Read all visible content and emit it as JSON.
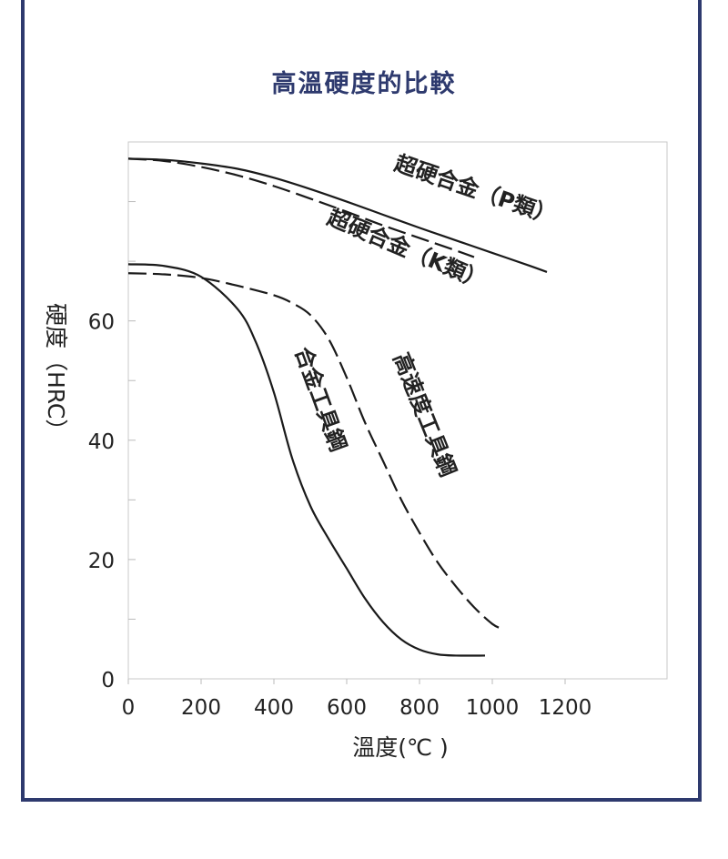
{
  "chart_data": {
    "type": "line",
    "title": "高溫硬度的比較",
    "xlabel": "溫度(℃ )",
    "ylabel": "硬度（HRC）",
    "xlim": [
      0,
      1480
    ],
    "ylim": [
      0,
      90
    ],
    "xticks": [
      "0",
      "200",
      "400",
      "600",
      "800",
      "1000",
      "1200"
    ],
    "xtick_values": [
      0,
      200,
      400,
      600,
      800,
      1000,
      1200
    ],
    "yticks": [
      "0",
      "20",
      "40",
      "60"
    ],
    "ytick_values": [
      0,
      20,
      40,
      60
    ],
    "grid": false,
    "series": [
      {
        "name": "超硬合金（P類）",
        "style": "solid",
        "x": [
          0,
          100,
          200,
          300,
          400,
          500,
          600,
          700,
          800,
          900,
          1000,
          1100,
          1150
        ],
        "y": [
          87.2,
          87.0,
          86.4,
          85.5,
          84.0,
          82.1,
          80.0,
          77.8,
          75.6,
          73.5,
          71.4,
          69.3,
          68.2
        ]
      },
      {
        "name": "超硬合金（K類）",
        "style": "dashed",
        "x": [
          0,
          100,
          200,
          300,
          400,
          500,
          600,
          700,
          800,
          900,
          950
        ],
        "y": [
          87.2,
          86.8,
          85.8,
          84.4,
          82.6,
          80.5,
          78.3,
          76.0,
          73.9,
          71.8,
          70.7
        ]
      },
      {
        "name": "合金工具鋼",
        "style": "solid",
        "x": [
          0,
          100,
          200,
          300,
          350,
          400,
          450,
          500,
          550,
          600,
          650,
          700,
          750,
          800,
          850,
          900,
          980
        ],
        "y": [
          69.5,
          69.2,
          67.4,
          62.0,
          56.5,
          48.0,
          37.0,
          29.0,
          23.5,
          18.5,
          13.5,
          9.5,
          6.6,
          4.9,
          4.1,
          3.9,
          3.9
        ]
      },
      {
        "name": "高速度工具鋼",
        "style": "dashed",
        "x": [
          0,
          100,
          200,
          300,
          400,
          450,
          500,
          550,
          600,
          650,
          700,
          750,
          800,
          850,
          900,
          950,
          1000,
          1030
        ],
        "y": [
          68.0,
          67.8,
          67.2,
          65.9,
          64.3,
          63.0,
          61.0,
          57.0,
          50.5,
          43.0,
          36.5,
          30.0,
          24.5,
          19.5,
          15.5,
          12.0,
          9.2,
          8.3
        ]
      }
    ]
  }
}
